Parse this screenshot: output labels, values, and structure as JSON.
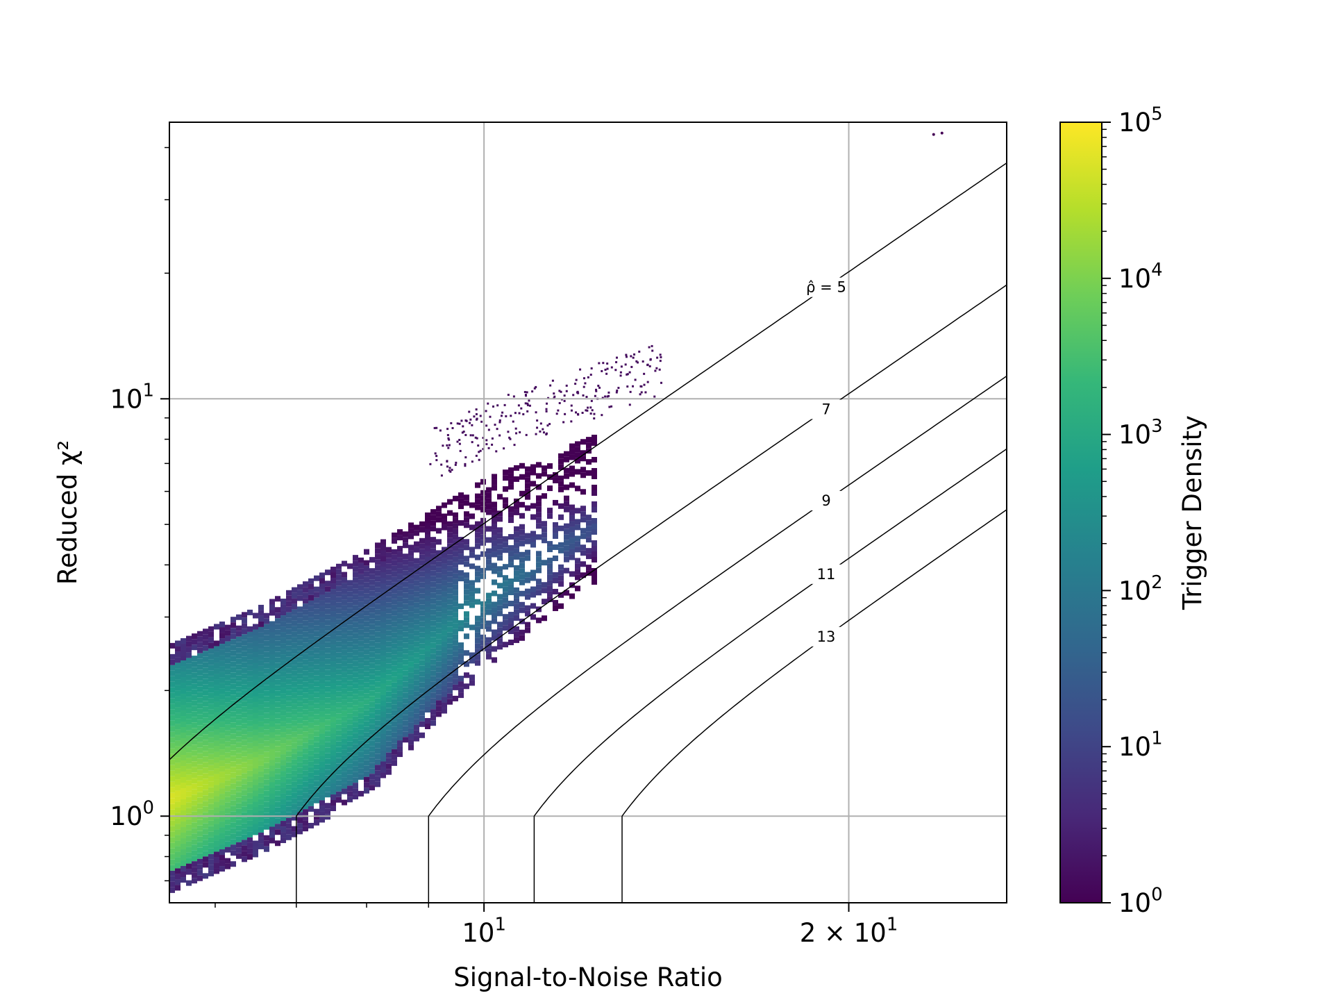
{
  "chart_data": {
    "type": "heatmap",
    "xlabel": "Signal-to-Noise Ratio",
    "ylabel": "Reduced χ²",
    "x_scale": "log",
    "y_scale": "log",
    "xlim": [
      5.5,
      27
    ],
    "ylim": [
      0.62,
      46
    ],
    "grid": true,
    "x_ticks": [
      {
        "value": 10,
        "label": "10",
        "exp": "1",
        "kind": "pow"
      },
      {
        "value": 20,
        "label": "2 × 10",
        "exp": "1",
        "kind": "mult"
      }
    ],
    "y_ticks": [
      {
        "value": 1,
        "label": "10",
        "exp": "0"
      },
      {
        "value": 10,
        "label": "10",
        "exp": "1"
      }
    ],
    "x_minor_ticks": [
      6,
      7,
      8,
      9,
      30
    ],
    "y_minor_ticks": [
      0.7,
      0.8,
      0.9,
      2,
      3,
      4,
      5,
      6,
      7,
      8,
      9,
      20,
      30,
      40
    ],
    "contours": [
      {
        "label": "ρ̂ = 5",
        "value": 5
      },
      {
        "label": "7",
        "value": 7
      },
      {
        "label": "9",
        "value": 9
      },
      {
        "label": "11",
        "value": 11
      },
      {
        "label": "13",
        "value": 13
      }
    ],
    "colorbar": {
      "label": "Trigger Density",
      "scale": "log",
      "range": [
        1,
        100000
      ],
      "ticks": [
        {
          "value": 1,
          "label": "10",
          "exp": "0"
        },
        {
          "value": 10,
          "label": "10",
          "exp": "1"
        },
        {
          "value": 100,
          "label": "10",
          "exp": "2"
        },
        {
          "value": 1000,
          "label": "10",
          "exp": "3"
        },
        {
          "value": 10000,
          "label": "10",
          "exp": "4"
        },
        {
          "value": 100000,
          "label": "10",
          "exp": "5"
        }
      ],
      "colormap": "viridis",
      "colormap_stops": [
        "#440154",
        "#482878",
        "#3e4a89",
        "#31688e",
        "#26828e",
        "#1f9e89",
        "#35b779",
        "#6ece58",
        "#b5de2b",
        "#fde725"
      ]
    },
    "density_ridges": [
      {
        "name": "main",
        "snr": [
          5.5,
          6.5,
          8,
          10,
          12
        ],
        "chisq_upper": [
          2.6,
          3.2,
          4.4,
          6.5,
          8.0
        ],
        "chisq_lower": [
          0.67,
          0.82,
          1.15,
          2.3,
          3.5
        ]
      },
      {
        "name": "high-branch",
        "snr": [
          9,
          11,
          14
        ],
        "chisq_center": [
          7.5,
          9.5,
          12
        ]
      }
    ],
    "outliers": [
      {
        "snr": 23.5,
        "chisq": 43
      }
    ]
  }
}
